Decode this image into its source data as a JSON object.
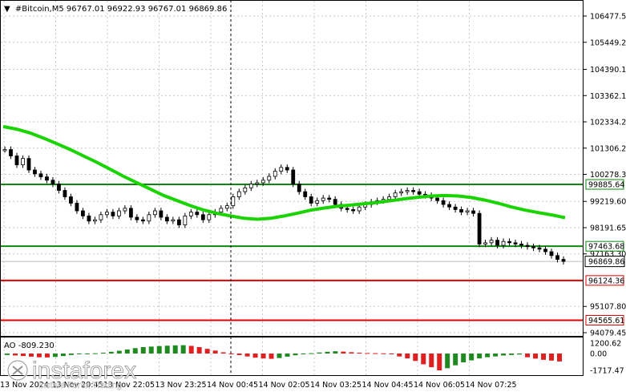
{
  "header": {
    "arrow": "▼",
    "text": "#Bitcoin,M5  96767.01 96922.93 96767.01 96869.86"
  },
  "ao_header": "AO -809.230",
  "watermark": {
    "brand": "instaforex",
    "tagline": "Instant Forex Trading"
  },
  "colors": {
    "ma": "#19d400",
    "level_green": "#0a8a0a",
    "level_red": "#e00000",
    "ao_up": "#1f8a1f",
    "ao_down": "#e02020",
    "grid": "#c8c8c8"
  },
  "chart_data": {
    "type": "line",
    "symbol": "#Bitcoin",
    "timeframe": "M5",
    "ohlc": {
      "open": 96767.01,
      "high": 96922.93,
      "low": 96767.01,
      "close": 96869.86
    },
    "price_ticks": [
      106477.5,
      105449.2,
      104390.1,
      103362.15,
      102334.2,
      101306.25,
      100278.3,
      99219.6,
      98191.65,
      97163.3,
      95107.8,
      94079.45
    ],
    "price_tick_labels": [
      "106477.50",
      "105449.20",
      "104390.10",
      "103362.15",
      "102334.20",
      "101306.25",
      "100278.30",
      "99219.60",
      "98191.65",
      "97163.30",
      "95107.80",
      "94079.45"
    ],
    "ylim": [
      93700,
      106900
    ],
    "x_ticks": [
      "13 Nov 2024",
      "13 Nov 20:45",
      "13 Nov 22:05",
      "13 Nov 23:25",
      "14 Nov 00:45",
      "14 Nov 02:05",
      "14 Nov 03:25",
      "14 Nov 04:45",
      "14 Nov 06:05",
      "14 Nov 07:25"
    ],
    "levels": [
      {
        "value": 99885.64,
        "label": "99885.64",
        "color": "green"
      },
      {
        "value": 97463.68,
        "label": "97463.68",
        "color": "green"
      },
      {
        "value": 96124.36,
        "label": "96124.36",
        "color": "red"
      },
      {
        "value": 94565.61,
        "label": "94565.61",
        "color": "red"
      }
    ],
    "current_price": {
      "value": 96869.86,
      "label": "96869.86"
    },
    "close_series": [
      101250,
      101000,
      100650,
      100900,
      100450,
      100300,
      100180,
      100050,
      99900,
      99650,
      99400,
      99150,
      98850,
      98650,
      98450,
      98500,
      98700,
      98800,
      98650,
      98850,
      98950,
      98600,
      98500,
      98450,
      98700,
      98850,
      98600,
      98450,
      98500,
      98300,
      98650,
      98800,
      98700,
      98500,
      98700,
      98800,
      98950,
      99050,
      99400,
      99600,
      99750,
      99900,
      99950,
      100050,
      100200,
      100400,
      100550,
      100450,
      99900,
      99600,
      99400,
      99150,
      99250,
      99350,
      99300,
      99100,
      98950,
      98900,
      98850,
      99000,
      99100,
      99200,
      99250,
      99300,
      99400,
      99550,
      99600,
      99650,
      99600,
      99500,
      99450,
      99350,
      99250,
      99100,
      99000,
      98900,
      98800,
      98850,
      98750,
      97550,
      97600,
      97700,
      97500,
      97650,
      97600,
      97550,
      97500,
      97450,
      97400,
      97350,
      97250,
      97100,
      96950,
      96869.86
    ],
    "ma_series": [
      102150,
      102050,
      101900,
      101700,
      101480,
      101250,
      101000,
      100750,
      100480,
      100200,
      99950,
      99700,
      99450,
      99250,
      99050,
      98880,
      98750,
      98650,
      98560,
      98520,
      98560,
      98650,
      98760,
      98880,
      98960,
      99030,
      99080,
      99130,
      99180,
      99250,
      99320,
      99380,
      99430,
      99450,
      99430,
      99370,
      99270,
      99150,
      99000,
      98880,
      98780,
      98690,
      98580
    ],
    "ao_values": [
      -150,
      -200,
      -260,
      -320,
      -380,
      -400,
      -350,
      -260,
      -150,
      -60,
      -20,
      30,
      100,
      200,
      320,
      460,
      620,
      740,
      800,
      860,
      900,
      940,
      960,
      880,
      740,
      540,
      340,
      140,
      -40,
      -160,
      -300,
      -420,
      -500,
      -540,
      -460,
      -320,
      -180,
      -60,
      40,
      120,
      200,
      260,
      220,
      150,
      100,
      60,
      40,
      20,
      -80,
      -300,
      -500,
      -760,
      -1100,
      -1400,
      -1717.47,
      -1500,
      -1200,
      -900,
      -700,
      -500,
      -380,
      -300,
      -200,
      -150,
      -100,
      -380,
      -520,
      -640,
      -720,
      -809.23
    ],
    "ao_ticks": [
      1200.62,
      0.0,
      -1717.47
    ],
    "ao_tick_labels": [
      "1200.62",
      "0.00",
      "-1717.47"
    ]
  }
}
